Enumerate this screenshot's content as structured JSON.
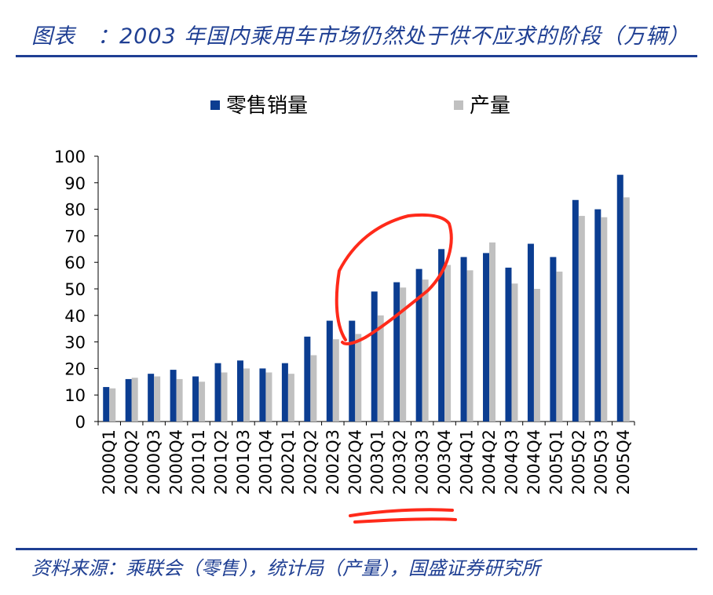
{
  "header": {
    "title": "图表　：2003 年国内乘用车市场仍然处于供不应求的阶段（万辆）"
  },
  "footer": {
    "source": "资料来源：乘联会（零售），统计局（产量），国盛证券研究所"
  },
  "chart_data": {
    "type": "bar",
    "categories": [
      "2000Q1",
      "2000Q2",
      "2000Q3",
      "2000Q4",
      "2001Q1",
      "2001Q2",
      "2001Q3",
      "2001Q4",
      "2002Q1",
      "2002Q2",
      "2002Q3",
      "2002Q4",
      "2003Q1",
      "2003Q2",
      "2003Q3",
      "2003Q4",
      "2004Q1",
      "2004Q2",
      "2004Q3",
      "2004Q4",
      "2005Q1",
      "2005Q2",
      "2005Q3",
      "2005Q4"
    ],
    "series": [
      {
        "name": "零售销量",
        "color": "#0b3d91",
        "values": [
          13,
          16,
          18,
          19.5,
          17,
          22,
          23,
          20,
          22,
          32,
          38,
          38,
          49,
          52.5,
          57.5,
          65,
          62,
          63.5,
          58,
          67,
          62,
          83.5,
          80,
          93
        ]
      },
      {
        "name": "产量",
        "color": "#c0c0c0",
        "values": [
          12.5,
          16.5,
          17,
          16,
          15,
          18.5,
          20,
          18.5,
          18,
          25,
          31,
          33,
          40,
          50.5,
          53.5,
          59,
          57,
          67.5,
          52,
          50,
          56.5,
          77.5,
          77,
          84.5
        ]
      }
    ],
    "ylim": [
      0,
      100
    ],
    "yticks": [
      0,
      10,
      20,
      30,
      40,
      50,
      60,
      70,
      80,
      90,
      100
    ],
    "legend_position": "top-center",
    "grid": false
  },
  "annotations": {
    "circle_color": "#ff2a1a",
    "underline_color": "#ff2a1a"
  }
}
